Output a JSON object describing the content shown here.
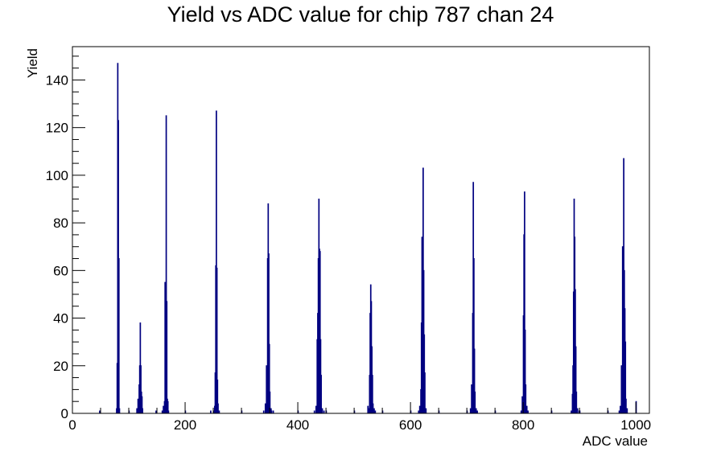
{
  "chart_data": {
    "type": "bar",
    "title": "Yield vs ADC value for chip 787 chan 24",
    "xlabel": "ADC value",
    "ylabel": "Yield",
    "xlim": [
      0,
      1024
    ],
    "ylim": [
      0,
      154
    ],
    "x_ticks": [
      0,
      200,
      400,
      600,
      800,
      1000
    ],
    "y_ticks": [
      0,
      20,
      40,
      60,
      80,
      100,
      120,
      140
    ],
    "grid": false,
    "legend": "none",
    "line_color": "#000080",
    "series": [
      {
        "bins": [
          [
            48,
            1
          ],
          [
            78,
            2
          ],
          [
            79,
            21
          ],
          [
            80,
            147
          ],
          [
            81,
            123
          ],
          [
            82,
            65
          ],
          [
            83,
            2
          ],
          [
            100,
            1
          ],
          [
            114,
            2
          ],
          [
            116,
            6
          ],
          [
            118,
            12
          ],
          [
            119,
            20
          ],
          [
            120,
            38
          ],
          [
            121,
            20
          ],
          [
            122,
            9
          ],
          [
            123,
            7
          ],
          [
            124,
            2
          ],
          [
            148,
            1
          ],
          [
            159,
            1
          ],
          [
            161,
            3
          ],
          [
            163,
            5
          ],
          [
            164,
            55
          ],
          [
            165,
            46
          ],
          [
            166,
            125
          ],
          [
            167,
            47
          ],
          [
            168,
            6
          ],
          [
            169,
            5
          ],
          [
            170,
            1
          ],
          [
            200,
            1
          ],
          [
            245,
            1
          ],
          [
            250,
            1
          ],
          [
            252,
            3
          ],
          [
            253,
            17
          ],
          [
            254,
            62
          ],
          [
            255,
            127
          ],
          [
            256,
            61
          ],
          [
            257,
            14
          ],
          [
            258,
            4
          ],
          [
            260,
            1
          ],
          [
            300,
            1
          ],
          [
            339,
            1
          ],
          [
            342,
            4
          ],
          [
            344,
            20
          ],
          [
            346,
            65
          ],
          [
            347,
            88
          ],
          [
            348,
            67
          ],
          [
            349,
            29
          ],
          [
            350,
            9
          ],
          [
            352,
            2
          ],
          [
            353,
            1
          ],
          [
            356,
            1
          ],
          [
            400,
            1
          ],
          [
            429,
            1
          ],
          [
            432,
            3
          ],
          [
            434,
            31
          ],
          [
            435,
            42
          ],
          [
            436,
            65
          ],
          [
            437,
            90
          ],
          [
            438,
            69
          ],
          [
            439,
            68
          ],
          [
            440,
            31
          ],
          [
            441,
            16
          ],
          [
            443,
            2
          ],
          [
            446,
            1
          ],
          [
            450,
            1
          ],
          [
            500,
            1
          ],
          [
            524,
            3
          ],
          [
            525,
            2
          ],
          [
            527,
            16
          ],
          [
            528,
            42
          ],
          [
            529,
            54
          ],
          [
            530,
            47
          ],
          [
            531,
            28
          ],
          [
            532,
            16
          ],
          [
            533,
            4
          ],
          [
            535,
            2
          ],
          [
            537,
            1
          ],
          [
            550,
            1
          ],
          [
            600,
            1
          ],
          [
            614,
            1
          ],
          [
            616,
            3
          ],
          [
            618,
            10
          ],
          [
            619,
            38
          ],
          [
            620,
            74
          ],
          [
            621,
            31
          ],
          [
            622,
            103
          ],
          [
            623,
            60
          ],
          [
            624,
            33
          ],
          [
            625,
            17
          ],
          [
            627,
            2
          ],
          [
            650,
            1
          ],
          [
            700,
            1
          ],
          [
            706,
            2
          ],
          [
            708,
            12
          ],
          [
            710,
            42
          ],
          [
            711,
            97
          ],
          [
            712,
            65
          ],
          [
            713,
            27
          ],
          [
            714,
            9
          ],
          [
            716,
            2
          ],
          [
            718,
            1
          ],
          [
            750,
            1
          ],
          [
            796,
            1
          ],
          [
            798,
            7
          ],
          [
            799,
            6
          ],
          [
            800,
            41
          ],
          [
            801,
            75
          ],
          [
            802,
            93
          ],
          [
            803,
            35
          ],
          [
            804,
            12
          ],
          [
            806,
            3
          ],
          [
            808,
            1
          ],
          [
            850,
            1
          ],
          [
            885,
            1
          ],
          [
            887,
            8
          ],
          [
            888,
            20
          ],
          [
            889,
            51
          ],
          [
            890,
            90
          ],
          [
            891,
            74
          ],
          [
            892,
            52
          ],
          [
            893,
            28
          ],
          [
            894,
            9
          ],
          [
            896,
            2
          ],
          [
            899,
            1
          ],
          [
            900,
            1
          ],
          [
            950,
            1
          ],
          [
            970,
            1
          ],
          [
            972,
            3
          ],
          [
            974,
            20
          ],
          [
            976,
            70
          ],
          [
            977,
            50
          ],
          [
            978,
            107
          ],
          [
            979,
            60
          ],
          [
            980,
            44
          ],
          [
            981,
            30
          ],
          [
            982,
            6
          ],
          [
            984,
            2
          ],
          [
            1000,
            5
          ]
        ]
      }
    ]
  }
}
